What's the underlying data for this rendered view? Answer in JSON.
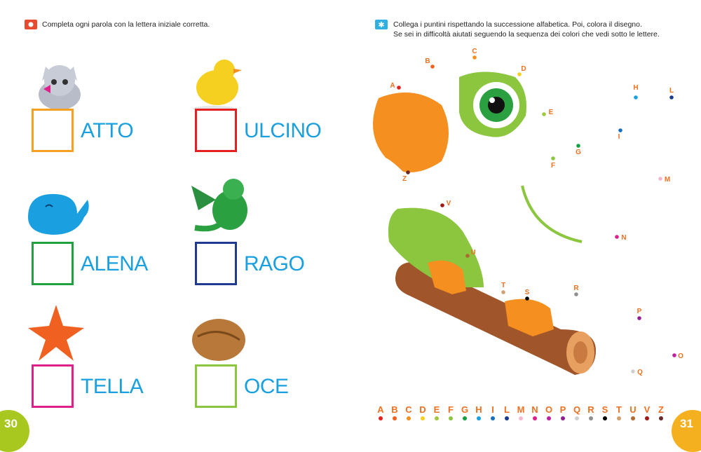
{
  "left_page": {
    "instruction": "Completa ogni parola con la lettera iniziale corretta.",
    "page_number": "30",
    "items": [
      {
        "word": "ATTO",
        "picture": "kitten",
        "box_color": "#f5a020"
      },
      {
        "word": "ULCINO",
        "picture": "chick",
        "box_color": "#e52020"
      },
      {
        "word": "ALENA",
        "picture": "whale",
        "box_color": "#20a040"
      },
      {
        "word": "RAGO",
        "picture": "dragon",
        "box_color": "#203a90"
      },
      {
        "word": "TELLA",
        "picture": "starfish",
        "box_color": "#e0208a"
      },
      {
        "word": "OCE",
        "picture": "walnut",
        "box_color": "#8cc63f"
      }
    ]
  },
  "right_page": {
    "instruction_line1": "Collega i puntini rispettando la successione alfabetica. Poi, colora il disegno.",
    "instruction_line2": "Se sei in difficoltà aiutati seguendo la sequenza dei colori che vedi sotto le lettere.",
    "page_number": "31",
    "picture": "parrot",
    "letters": [
      {
        "letter": "A",
        "color": "#e52020"
      },
      {
        "letter": "B",
        "color": "#f06020"
      },
      {
        "letter": "C",
        "color": "#f59020"
      },
      {
        "letter": "D",
        "color": "#f5d020"
      },
      {
        "letter": "E",
        "color": "#a0c83c"
      },
      {
        "letter": "F",
        "color": "#8cc63f"
      },
      {
        "letter": "G",
        "color": "#10a040"
      },
      {
        "letter": "H",
        "color": "#1aa0e0"
      },
      {
        "letter": "I",
        "color": "#1a70c0"
      },
      {
        "letter": "L",
        "color": "#1a3a90"
      },
      {
        "letter": "M",
        "color": "#f5b8d0"
      },
      {
        "letter": "N",
        "color": "#e0208a"
      },
      {
        "letter": "O",
        "color": "#c020a0"
      },
      {
        "letter": "P",
        "color": "#902090"
      },
      {
        "letter": "Q",
        "color": "#d0d0d0"
      },
      {
        "letter": "R",
        "color": "#909090"
      },
      {
        "letter": "S",
        "color": "#000000"
      },
      {
        "letter": "T",
        "color": "#d0a070"
      },
      {
        "letter": "U",
        "color": "#b06a30"
      },
      {
        "letter": "V",
        "color": "#a01818"
      },
      {
        "letter": "Z",
        "color": "#6a2828"
      }
    ]
  },
  "colors": {
    "left_badge": "#e84a30",
    "right_badge": "#30b0e0",
    "left_pagenum": "#a8c820",
    "right_pagenum": "#f5b020",
    "word_color": "#1aa0e0"
  }
}
